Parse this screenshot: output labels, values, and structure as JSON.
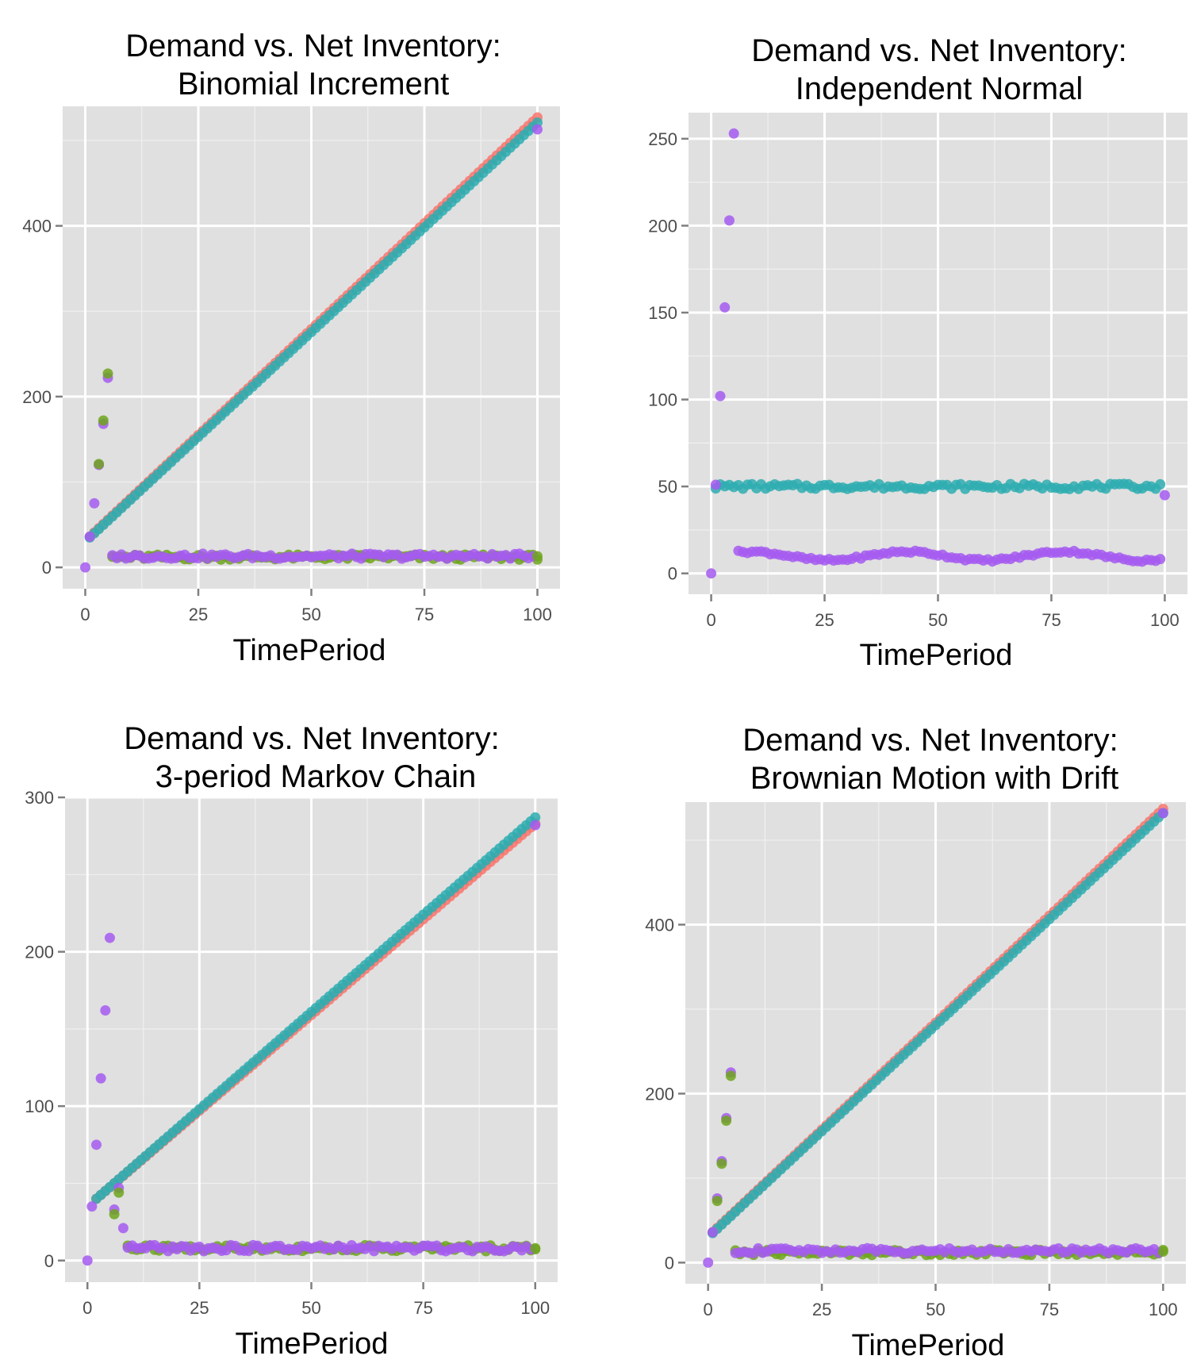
{
  "figure": {
    "panels": [
      {
        "title_line1": "Demand vs. Net Inventory:",
        "title_line2": "Binomial Increment",
        "xlabel": "TimePeriod"
      },
      {
        "title_line1": "Demand vs. Net Inventory:",
        "title_line2": "Independent Normal",
        "xlabel": "TimePeriod"
      },
      {
        "title_line1": "Demand vs. Net Inventory:",
        "title_line2": "3-period Markov Chain",
        "xlabel": "TimePeriod"
      },
      {
        "title_line1": "Demand vs. Net Inventory:",
        "title_line2": "Brownian Motion with Drift",
        "xlabel": "TimePeriod"
      }
    ]
  },
  "chart_data": [
    {
      "type": "scatter",
      "title": "Demand vs. Net Inventory: Binomial Increment",
      "xlabel": "TimePeriod",
      "ylabel": "",
      "xlim": [
        -5,
        105
      ],
      "ylim": [
        -25,
        540
      ],
      "xticks": [
        0,
        25,
        50,
        75,
        100
      ],
      "yticks": [
        0,
        200,
        400
      ],
      "grid": true,
      "colors": {
        "red": "#f8766d",
        "teal": "#2eadb0",
        "green": "#6ea41c",
        "purple": "#a55bf0"
      },
      "series": [
        {
          "color_key": "red",
          "kind": "line",
          "x_start": 1,
          "x_end": 100,
          "y_start": 36,
          "y_end": 527
        },
        {
          "color_key": "teal",
          "kind": "line",
          "x_start": 1,
          "x_end": 100,
          "y_start": 35,
          "y_end": 521
        },
        {
          "color_key": "green",
          "kind": "flat",
          "x_start": 6,
          "x_end": 100,
          "level": 12,
          "noise": 3
        },
        {
          "color_key": "purple",
          "kind": "flat",
          "x_start": 6,
          "x_end": 99,
          "level": 13,
          "noise": 3
        },
        {
          "color_key": "purple",
          "kind": "points",
          "points": [
            [
              0,
              0
            ],
            [
              1,
              36
            ],
            [
              2,
              75
            ],
            [
              3,
              120
            ],
            [
              4,
              168
            ],
            [
              5,
              222
            ],
            [
              100,
              513
            ]
          ]
        },
        {
          "color_key": "green",
          "kind": "points",
          "points": [
            [
              3,
              121
            ],
            [
              4,
              172
            ],
            [
              5,
              227
            ],
            [
              100,
              13
            ]
          ]
        }
      ]
    },
    {
      "type": "scatter",
      "title": "Demand vs. Net Inventory: Independent Normal",
      "xlabel": "TimePeriod",
      "ylabel": "",
      "xlim": [
        -5,
        105
      ],
      "ylim": [
        -12,
        265
      ],
      "xticks": [
        0,
        25,
        50,
        75,
        100
      ],
      "yticks": [
        0,
        50,
        100,
        150,
        200,
        250
      ],
      "grid": true,
      "colors": {
        "red": "#f8766d",
        "teal": "#2eadb0",
        "green": "#6ea41c",
        "purple": "#a55bf0"
      },
      "series": [
        {
          "color_key": "teal",
          "kind": "flat",
          "x_start": 1,
          "x_end": 99,
          "level": 50,
          "noise": 1.5
        },
        {
          "color_key": "purple",
          "kind": "wave",
          "x_start": 6,
          "x_end": 99,
          "level": 10,
          "amp": 2.5
        },
        {
          "color_key": "purple",
          "kind": "points",
          "points": [
            [
              0,
              0
            ],
            [
              1,
              51
            ],
            [
              2,
              102
            ],
            [
              3,
              153
            ],
            [
              4,
              203
            ],
            [
              5,
              253
            ],
            [
              100,
              45
            ]
          ]
        }
      ]
    },
    {
      "type": "scatter",
      "title": "Demand vs. Net Inventory: 3-period Markov Chain",
      "xlabel": "TimePeriod",
      "ylabel": "",
      "xlim": [
        -5,
        105
      ],
      "ylim": [
        -14,
        300
      ],
      "xticks": [
        0,
        25,
        50,
        75,
        100
      ],
      "yticks": [
        0,
        100,
        200,
        300
      ],
      "grid": true,
      "colors": {
        "red": "#f8766d",
        "teal": "#2eadb0",
        "green": "#6ea41c",
        "purple": "#a55bf0"
      },
      "series": [
        {
          "color_key": "red",
          "kind": "line",
          "x_start": 2,
          "x_end": 100,
          "y_start": 40,
          "y_end": 283
        },
        {
          "color_key": "teal",
          "kind": "line",
          "x_start": 2,
          "x_end": 100,
          "y_start": 40,
          "y_end": 287
        },
        {
          "color_key": "green",
          "kind": "flat",
          "x_start": 9,
          "x_end": 100,
          "level": 8,
          "noise": 2
        },
        {
          "color_key": "purple",
          "kind": "flat",
          "x_start": 9,
          "x_end": 99,
          "level": 8,
          "noise": 2
        },
        {
          "color_key": "purple",
          "kind": "points",
          "points": [
            [
              0,
              0
            ],
            [
              1,
              35
            ],
            [
              2,
              75
            ],
            [
              3,
              118
            ],
            [
              4,
              162
            ],
            [
              5,
              209
            ],
            [
              6,
              33
            ],
            [
              7,
              47
            ],
            [
              8,
              21
            ],
            [
              100,
              282
            ]
          ]
        },
        {
          "color_key": "green",
          "kind": "points",
          "points": [
            [
              6,
              30
            ],
            [
              7,
              44
            ],
            [
              100,
              8
            ]
          ]
        }
      ]
    },
    {
      "type": "scatter",
      "title": "Demand vs. Net Inventory: Brownian Motion with Drift",
      "xlabel": "TimePeriod",
      "ylabel": "",
      "xlim": [
        -5,
        105
      ],
      "ylim": [
        -25,
        545
      ],
      "xticks": [
        0,
        25,
        50,
        75,
        100
      ],
      "yticks": [
        0,
        200,
        400
      ],
      "grid": true,
      "colors": {
        "red": "#f8766d",
        "teal": "#2eadb0",
        "green": "#6ea41c",
        "purple": "#a55bf0"
      },
      "series": [
        {
          "color_key": "red",
          "kind": "line",
          "x_start": 1,
          "x_end": 100,
          "y_start": 36,
          "y_end": 537
        },
        {
          "color_key": "teal",
          "kind": "line",
          "x_start": 1,
          "x_end": 100,
          "y_start": 35,
          "y_end": 532
        },
        {
          "color_key": "green",
          "kind": "flat",
          "x_start": 6,
          "x_end": 100,
          "level": 12,
          "noise": 3
        },
        {
          "color_key": "purple",
          "kind": "flat",
          "x_start": 6,
          "x_end": 99,
          "level": 14,
          "noise": 3
        },
        {
          "color_key": "purple",
          "kind": "points",
          "points": [
            [
              0,
              0
            ],
            [
              1,
              36
            ],
            [
              2,
              76
            ],
            [
              3,
              120
            ],
            [
              4,
              171
            ],
            [
              5,
              225
            ],
            [
              100,
              532
            ]
          ]
        },
        {
          "color_key": "green",
          "kind": "points",
          "points": [
            [
              2,
              73
            ],
            [
              3,
              117
            ],
            [
              4,
              168
            ],
            [
              5,
              221
            ],
            [
              100,
              13
            ]
          ]
        }
      ]
    }
  ]
}
